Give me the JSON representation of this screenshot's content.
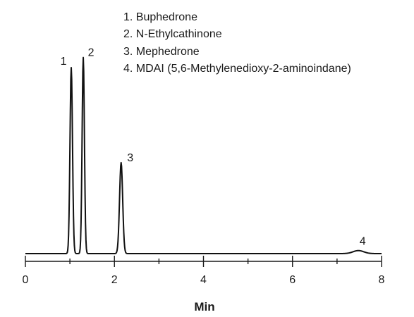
{
  "chart_data": {
    "type": "line",
    "xlabel": "Min",
    "ylabel": "",
    "xlim": [
      0,
      8
    ],
    "ylim": [
      0,
      1
    ],
    "x_ticks": [
      0,
      2,
      4,
      6,
      8
    ],
    "x_tick_labels": [
      "0",
      "2",
      "4",
      "6",
      "8"
    ],
    "legend_entries": [
      "1. Buphedrone",
      "2. N-Ethylcathinone",
      "3. Mephedrone",
      "4. MDAI (5,6-Methylenedioxy-2-aminoindane)"
    ],
    "peaks": [
      {
        "label": "1",
        "x": 1.03,
        "height": 0.92
      },
      {
        "label": "2",
        "x": 1.3,
        "height": 0.97
      },
      {
        "label": "3",
        "x": 2.15,
        "height": 0.45
      },
      {
        "label": "4",
        "x": 7.48,
        "height": 0.015
      }
    ],
    "colors": {
      "trace": "#111111",
      "axis": "#1a1a1a",
      "text": "#1a1a1a",
      "background": "#ffffff"
    }
  }
}
